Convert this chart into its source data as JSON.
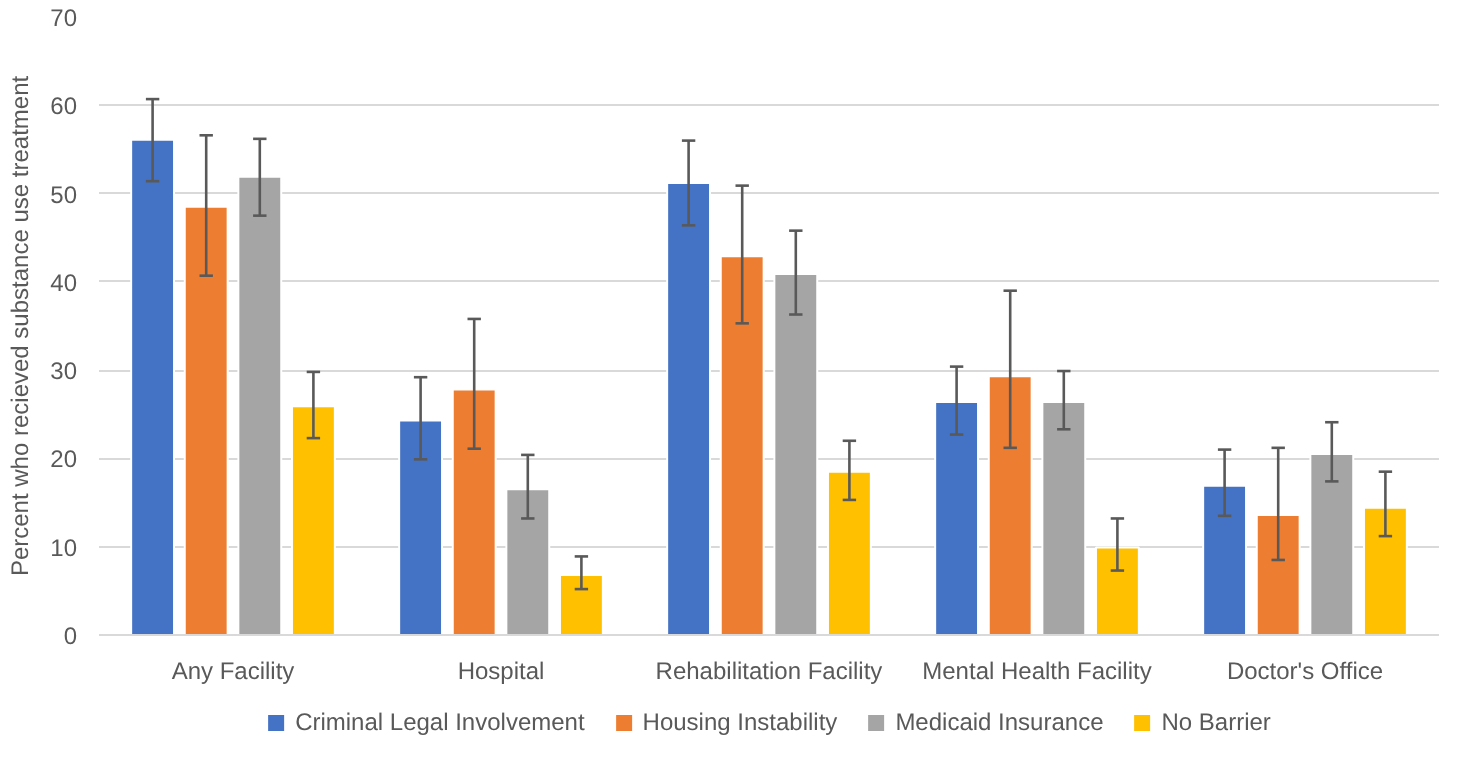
{
  "chart_data": {
    "type": "bar",
    "ylabel": "Percent who recieved substance use treatment",
    "categories": [
      "Any Facility",
      "Hospital",
      "Rehabilitation Facility",
      "Mental Health Facility",
      "Doctor's Office"
    ],
    "series": [
      {
        "name": "Criminal Legal Involvement",
        "color": "#4472c4",
        "values": [
          56.1,
          24.3,
          51.2,
          26.4,
          16.9
        ],
        "errors": [
          [
            51.4,
            60.7
          ],
          [
            19.9,
            29.2
          ],
          [
            46.4,
            56.0
          ],
          [
            22.7,
            30.4
          ],
          [
            13.5,
            21.0
          ]
        ]
      },
      {
        "name": "Housing Instability",
        "color": "#ed7d31",
        "values": [
          48.5,
          27.8,
          42.9,
          29.3,
          13.6
        ],
        "errors": [
          [
            40.7,
            56.6
          ],
          [
            21.1,
            35.8
          ],
          [
            35.3,
            50.9
          ],
          [
            21.2,
            39.0
          ],
          [
            8.5,
            21.2
          ]
        ]
      },
      {
        "name": "Medicaid Insurance",
        "color": "#a5a5a5",
        "values": [
          51.9,
          16.5,
          40.9,
          26.4,
          20.5
        ],
        "errors": [
          [
            47.5,
            56.2
          ],
          [
            13.2,
            20.4
          ],
          [
            36.3,
            45.8
          ],
          [
            23.3,
            29.9
          ],
          [
            17.4,
            24.1
          ]
        ]
      },
      {
        "name": "No Barrier",
        "color": "#ffc000",
        "values": [
          25.9,
          6.8,
          18.5,
          9.9,
          14.4
        ],
        "errors": [
          [
            22.3,
            29.8
          ],
          [
            5.2,
            8.9
          ],
          [
            15.3,
            22.0
          ],
          [
            7.3,
            13.2
          ],
          [
            11.2,
            18.5
          ]
        ]
      }
    ],
    "ylim": [
      0,
      70
    ],
    "yticks": [
      0,
      10,
      20,
      30,
      40,
      50,
      60,
      70
    ],
    "grid": "y",
    "legend": "bottom"
  }
}
